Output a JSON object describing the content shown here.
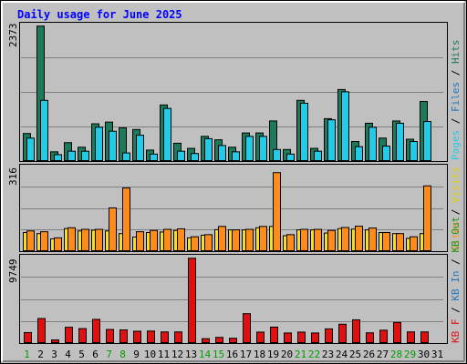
{
  "chart_data": [
    {
      "type": "bar",
      "title": "Daily usage for June 2025",
      "panel": "hits-files-pages",
      "ymax_label": "2373",
      "ylim": [
        0,
        2373
      ],
      "grid": true,
      "categories": [
        "1",
        "2",
        "3",
        "4",
        "5",
        "6",
        "7",
        "8",
        "9",
        "10",
        "11",
        "12",
        "13",
        "14",
        "15",
        "16",
        "17",
        "18",
        "19",
        "20",
        "21",
        "22",
        "23",
        "24",
        "25",
        "26",
        "27",
        "28",
        "29",
        "30",
        "31"
      ],
      "series": [
        {
          "name": "Hits",
          "color": "#1b7a5c",
          "values": [
            490,
            2370,
            170,
            330,
            250,
            660,
            690,
            590,
            560,
            200,
            990,
            320,
            230,
            440,
            380,
            250,
            500,
            500,
            710,
            210,
            1070,
            230,
            750,
            1260,
            350,
            670,
            410,
            710,
            390,
            1050,
            0
          ]
        },
        {
          "name": "Files",
          "color": "#22cbe8",
          "values": [
            410,
            1070,
            120,
            180,
            180,
            600,
            530,
            150,
            460,
            130,
            930,
            180,
            140,
            400,
            280,
            170,
            440,
            440,
            210,
            130,
            1020,
            180,
            730,
            1220,
            260,
            600,
            270,
            670,
            350,
            700,
            0
          ]
        },
        {
          "name": "Pages",
          "color": "#22cbe8",
          "values": [
            0,
            0,
            0,
            0,
            0,
            0,
            0,
            0,
            0,
            0,
            0,
            0,
            0,
            0,
            0,
            0,
            0,
            0,
            0,
            0,
            0,
            0,
            0,
            0,
            0,
            0,
            0,
            0,
            0,
            0,
            0
          ]
        }
      ],
      "axis_text": {
        "pages": "Pages",
        "slash1": " / ",
        "files": "Files",
        "slash2": " / ",
        "hits": "Hits"
      }
    },
    {
      "type": "bar",
      "panel": "sites-visits",
      "ymax_label": "316",
      "ylim": [
        0,
        316
      ],
      "grid": true,
      "categories": [
        "1",
        "2",
        "3",
        "4",
        "5",
        "6",
        "7",
        "8",
        "9",
        "10",
        "11",
        "12",
        "13",
        "14",
        "15",
        "16",
        "17",
        "18",
        "19",
        "20",
        "21",
        "22",
        "23",
        "24",
        "25",
        "26",
        "27",
        "28",
        "29",
        "30",
        "31"
      ],
      "series": [
        {
          "name": "Visits",
          "color": "#f4e020",
          "values": [
            72,
            68,
            48,
            87,
            78,
            81,
            78,
            68,
            55,
            72,
            74,
            80,
            52,
            62,
            83,
            82,
            82,
            90,
            95,
            60,
            82,
            82,
            70,
            87,
            85,
            82,
            72,
            68,
            50,
            68,
            0
          ]
        },
        {
          "name": "Sites",
          "color": "#ff8c1a",
          "values": [
            78,
            75,
            52,
            90,
            84,
            84,
            165,
            240,
            75,
            80,
            84,
            86,
            56,
            64,
            95,
            82,
            84,
            95,
            298,
            64,
            84,
            84,
            80,
            91,
            96,
            89,
            72,
            68,
            56,
            248,
            0
          ]
        }
      ],
      "axis_text": {
        "sites": "Sites",
        "slash": " / ",
        "visits": "Visits"
      }
    },
    {
      "type": "bar",
      "panel": "kbytes",
      "ymax_label": "9749",
      "ylim": [
        0,
        9749
      ],
      "grid": true,
      "categories": [
        "1",
        "2",
        "3",
        "4",
        "5",
        "6",
        "7",
        "8",
        "9",
        "10",
        "11",
        "12",
        "13",
        "14",
        "15",
        "16",
        "17",
        "18",
        "19",
        "20",
        "21",
        "22",
        "23",
        "24",
        "25",
        "26",
        "27",
        "28",
        "29",
        "30",
        "31"
      ],
      "series": [
        {
          "name": "KB F",
          "color": "#e01010",
          "values": [
            1250,
            2850,
            410,
            1850,
            1700,
            2750,
            1600,
            1550,
            1400,
            1420,
            1320,
            1320,
            9720,
            550,
            700,
            600,
            3400,
            1300,
            1870,
            1200,
            1300,
            1200,
            1670,
            2200,
            2700,
            1220,
            1520,
            2400,
            1320,
            1320,
            0
          ]
        },
        {
          "name": "KB In",
          "color": "#0000ff",
          "values": [
            0,
            0,
            0,
            0,
            0,
            0,
            0,
            0,
            0,
            0,
            0,
            0,
            0,
            0,
            0,
            0,
            0,
            0,
            0,
            0,
            0,
            0,
            0,
            0,
            0,
            0,
            0,
            0,
            0,
            0,
            0
          ]
        },
        {
          "name": "KB Out",
          "color": "#00a000",
          "values": [
            0,
            0,
            0,
            0,
            0,
            0,
            0,
            0,
            0,
            0,
            0,
            0,
            0,
            0,
            0,
            0,
            0,
            0,
            0,
            0,
            0,
            0,
            0,
            0,
            0,
            0,
            0,
            0,
            0,
            0,
            0
          ]
        }
      ],
      "axis_text": {
        "kbf": "KB F",
        "slash1": " / ",
        "kbin": "KB In",
        "slash2": " / ",
        "kbout": "KB Out"
      }
    }
  ],
  "weekend_days": [
    1,
    7,
    8,
    14,
    15,
    21,
    22,
    28,
    29
  ],
  "colors": {
    "background": "#c0c0c0",
    "frame": "#ffffff",
    "title": "#0000ff",
    "grid": "#808080",
    "weekday_label": "#000000",
    "weekend_label": "#00a000",
    "axis_hits": "#1b7a5c",
    "axis_files": "#2079c0",
    "axis_pages": "#22cbe8",
    "axis_sites": "#ff8c1a",
    "axis_visits": "#e8d000",
    "axis_kbf": "#e01010",
    "axis_kbin": "#2079c0",
    "axis_kbout": "#1b9a1b"
  }
}
